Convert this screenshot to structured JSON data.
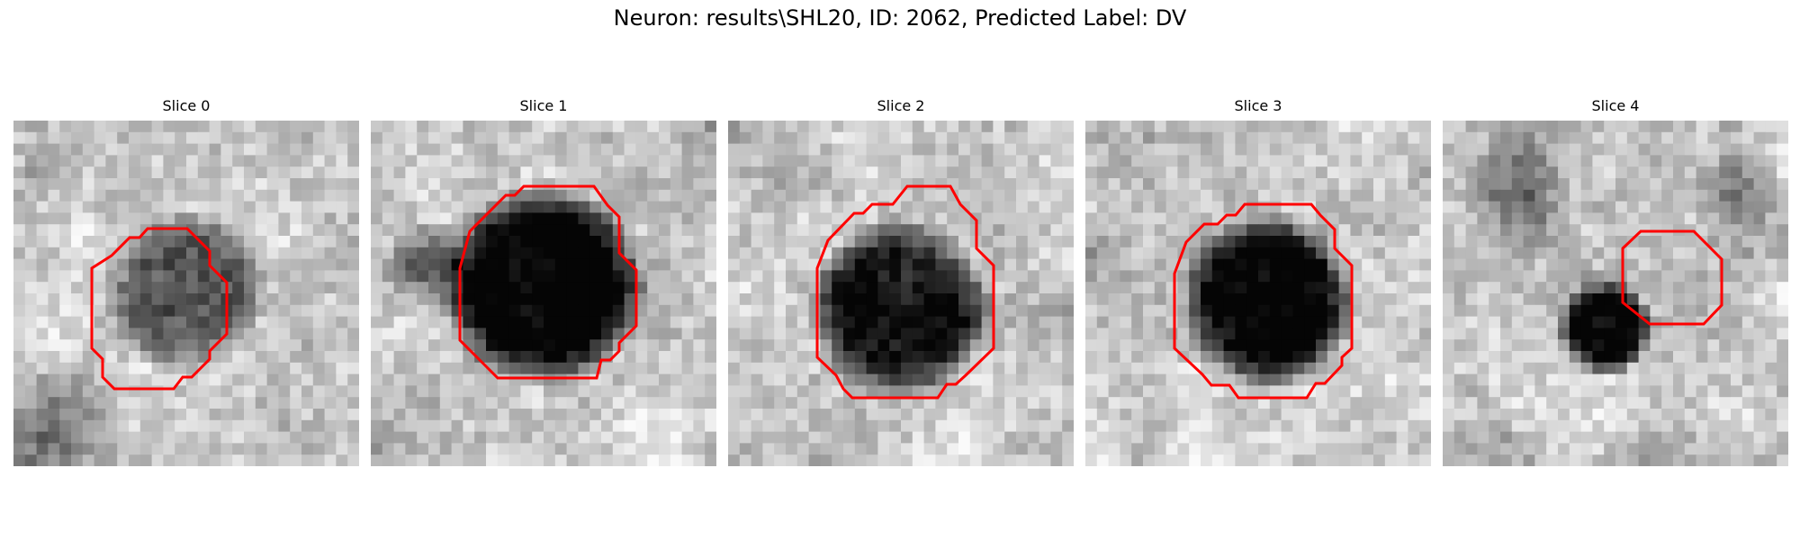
{
  "figure": {
    "title": "Neuron: results\\SHL20, ID: 2062, Predicted Label: DV"
  },
  "panels": [
    {
      "title": "Slice 0",
      "seed": 11,
      "blob": [
        0.5,
        0.5,
        0.24,
        0.45
      ],
      "extra": 0
    },
    {
      "title": "Slice 1",
      "seed": 23,
      "blob": [
        0.5,
        0.48,
        0.3,
        0.85
      ],
      "extra": 1
    },
    {
      "title": "Slice 2",
      "seed": 37,
      "blob": [
        0.5,
        0.55,
        0.27,
        0.7
      ],
      "extra": 0
    },
    {
      "title": "Slice 3",
      "seed": 51,
      "blob": [
        0.53,
        0.52,
        0.26,
        0.8
      ],
      "extra": 0
    },
    {
      "title": "Slice 4",
      "seed": 67,
      "blob": [
        0.47,
        0.6,
        0.14,
        0.8
      ],
      "extra": 2
    }
  ],
  "colors": {
    "contour": "#ff0000",
    "background": "#ffffff"
  }
}
